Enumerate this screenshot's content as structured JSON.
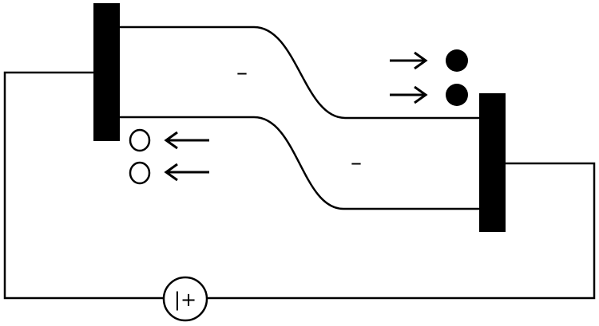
{
  "diagram": {
    "region_left": {
      "sign": "–"
    },
    "region_right": {
      "sign": "–"
    },
    "source": {
      "symbol": "|+"
    },
    "colors": {
      "line": "#000000",
      "background": "#ffffff"
    },
    "elements": {
      "left_electrode": "left-electrode",
      "right_electrode": "right-electrode",
      "holes": 2,
      "electrons": 2,
      "hole_arrow_direction": "left",
      "electron_arrow_direction": "right"
    }
  }
}
